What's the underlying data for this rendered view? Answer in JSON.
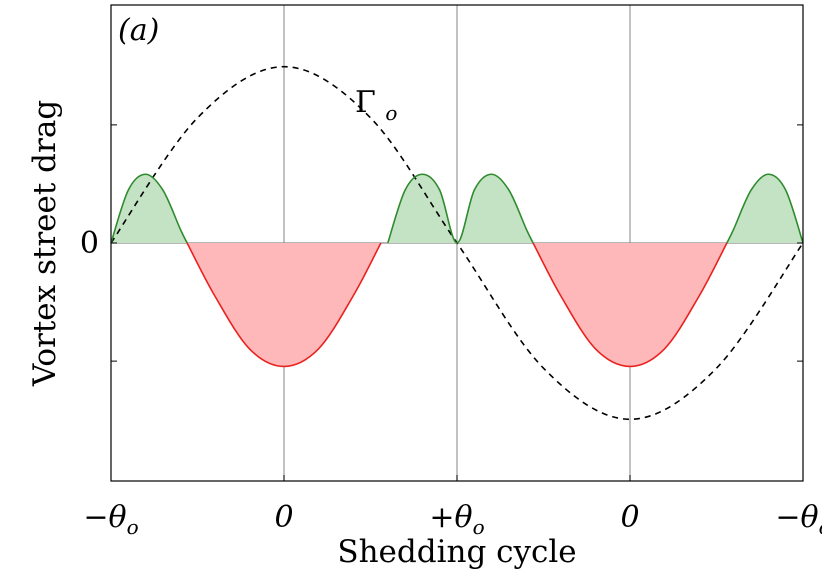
{
  "chart_data": {
    "type": "line",
    "panel_label": "(a)",
    "xlabel": "Shedding cycle",
    "ylabel": "Vortex street drag",
    "xlim": [
      -1,
      1
    ],
    "ylim": [
      -1.35,
      1.35
    ],
    "x_ticks": [
      {
        "x": -1.0,
        "label": "−θ",
        "sub": "o"
      },
      {
        "x": -0.5,
        "label": "0",
        "sub": ""
      },
      {
        "x": 0.0,
        "label": "+θ",
        "sub": "o"
      },
      {
        "x": 0.5,
        "label": "0",
        "sub": ""
      },
      {
        "x": 1.0,
        "label": "−θ",
        "sub": "o"
      }
    ],
    "y_ticks": [
      {
        "y": 0,
        "label": "0"
      }
    ],
    "y_minor_ticks": [
      0.67,
      -0.67
    ],
    "vertical_gridlines": [
      -0.5,
      0.0,
      0.5
    ],
    "annotation": {
      "label": "Γ",
      "sub": "o",
      "x": -0.25,
      "y": 0.76
    },
    "series": [
      {
        "name": "Γo",
        "style": "dashed",
        "color": "#000000",
        "x": [
          -1.0,
          -0.75,
          -0.5,
          -0.25,
          0.0,
          0.25,
          0.5,
          0.75,
          1.0
        ],
        "y": [
          0.0,
          0.71,
          1.0,
          0.71,
          0.0,
          -0.71,
          -1.0,
          -0.71,
          0.0
        ]
      },
      {
        "name": "drag_positive",
        "style": "solid",
        "color": "#2e8b2e",
        "fill": "#c4e2c4",
        "x": [
          -1.0,
          -0.95,
          -0.9,
          -0.85,
          -0.8,
          -0.78,
          -0.2,
          -0.15,
          -0.1,
          -0.05,
          0.0,
          0.05,
          0.1,
          0.15,
          0.2,
          0.22,
          0.78,
          0.8,
          0.85,
          0.9,
          0.95,
          1.0
        ],
        "y": [
          0.0,
          0.3,
          0.39,
          0.3,
          0.08,
          0.0,
          0.0,
          0.3,
          0.39,
          0.3,
          0.0,
          0.3,
          0.39,
          0.3,
          0.08,
          0.0,
          0.0,
          0.08,
          0.3,
          0.39,
          0.3,
          0.0
        ]
      },
      {
        "name": "drag_negative",
        "style": "solid",
        "color": "#e8231f",
        "fill": "#ffb8ba",
        "x": [
          -0.78,
          -0.7,
          -0.6,
          -0.5,
          -0.4,
          -0.3,
          -0.22,
          0.22,
          0.3,
          0.4,
          0.5,
          0.6,
          0.7,
          0.78
        ],
        "y": [
          0.0,
          -0.3,
          -0.6,
          -0.7,
          -0.6,
          -0.3,
          0.0,
          0.0,
          -0.3,
          -0.6,
          -0.7,
          -0.6,
          -0.3,
          0.0
        ]
      }
    ]
  }
}
